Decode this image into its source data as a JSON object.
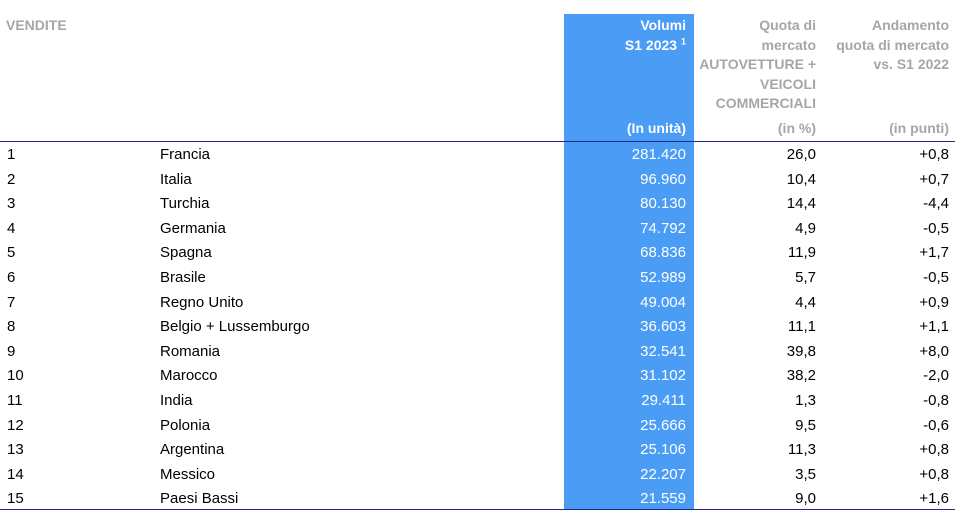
{
  "header": {
    "section_label": "VENDITE",
    "volumes_line1": "Volumi",
    "volumes_line2": "S1 2023",
    "volumes_footnote": "1",
    "volumes_unit": "(In unità)",
    "share_line1": "Quota di",
    "share_line2": "mercato",
    "share_line3": "AUTOVETTURE +",
    "share_line4": "VEICOLI",
    "share_line5": "COMMERCIALI",
    "share_unit": "(in %)",
    "trend_line1": "Andamento",
    "trend_line2": "quota di mercato",
    "trend_line3": "vs. S1 2022",
    "trend_unit": "(in punti)"
  },
  "colors": {
    "highlight_column": "#4a9cf5",
    "header_gray": "#a6a6a6",
    "rule": "#1e2a8c"
  },
  "rows": [
    {
      "rank": "1",
      "country": "Francia",
      "volume": "281.420",
      "share": "26,0",
      "trend": "+0,8"
    },
    {
      "rank": "2",
      "country": "Italia",
      "volume": "96.960",
      "share": "10,4",
      "trend": "+0,7"
    },
    {
      "rank": "3",
      "country": "Turchia",
      "volume": "80.130",
      "share": "14,4",
      "trend": "-4,4"
    },
    {
      "rank": "4",
      "country": "Germania",
      "volume": "74.792",
      "share": "4,9",
      "trend": "-0,5"
    },
    {
      "rank": "5",
      "country": "Spagna",
      "volume": "68.836",
      "share": "11,9",
      "trend": "+1,7"
    },
    {
      "rank": "6",
      "country": "Brasile",
      "volume": "52.989",
      "share": "5,7",
      "trend": "-0,5"
    },
    {
      "rank": "7",
      "country": "Regno Unito",
      "volume": "49.004",
      "share": "4,4",
      "trend": "+0,9"
    },
    {
      "rank": "8",
      "country": "Belgio + Lussemburgo",
      "volume": "36.603",
      "share": "11,1",
      "trend": "+1,1"
    },
    {
      "rank": "9",
      "country": "Romania",
      "volume": "32.541",
      "share": "39,8",
      "trend": "+8,0"
    },
    {
      "rank": "10",
      "country": "Marocco",
      "volume": "31.102",
      "share": "38,2",
      "trend": "-2,0"
    },
    {
      "rank": "11",
      "country": "India",
      "volume": "29.411",
      "share": "1,3",
      "trend": "-0,8"
    },
    {
      "rank": "12",
      "country": "Polonia",
      "volume": "25.666",
      "share": "9,5",
      "trend": "-0,6"
    },
    {
      "rank": "13",
      "country": "Argentina",
      "volume": "25.106",
      "share": "11,3",
      "trend": "+0,8"
    },
    {
      "rank": "14",
      "country": "Messico",
      "volume": "22.207",
      "share": "3,5",
      "trend": "+0,8"
    },
    {
      "rank": "15",
      "country": "Paesi Bassi",
      "volume": "21.559",
      "share": "9,0",
      "trend": "+1,6"
    }
  ]
}
